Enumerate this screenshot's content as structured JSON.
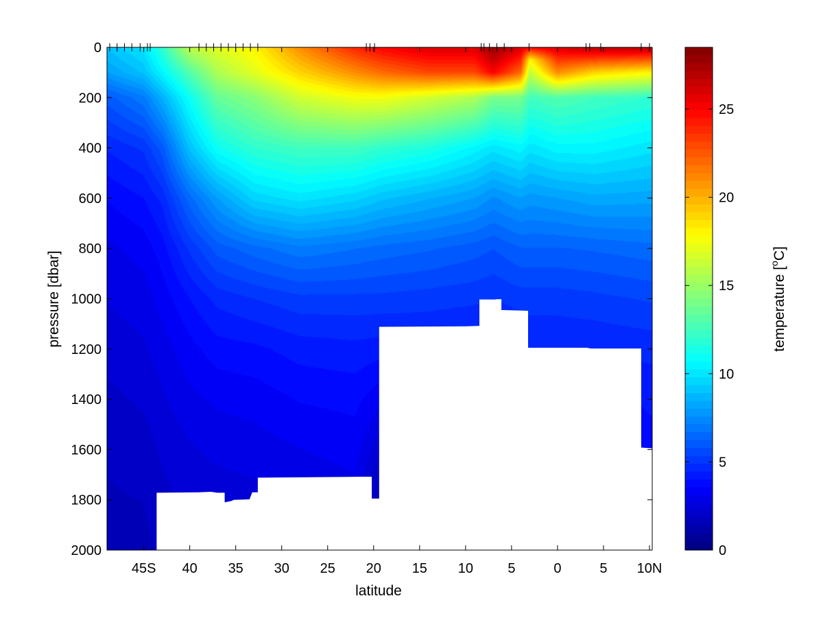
{
  "chart_data": {
    "type": "heatmap",
    "subtype": "filled-contour ocean section",
    "title": "",
    "xlabel": "latitude",
    "ylabel": "pressure [dbar]",
    "colorbar_label": "temperature [",
    "colorbar_label_sup": "o",
    "colorbar_label_unit": "C]",
    "colormap": "jet",
    "x_axis": {
      "range": [
        -49,
        10.3
      ],
      "tick_values": [
        -45,
        -40,
        -35,
        -30,
        -25,
        -20,
        -15,
        -10,
        -5,
        0,
        5,
        10
      ],
      "tick_labels": [
        "45S",
        "40",
        "35",
        "30",
        "25",
        "20",
        "15",
        "10",
        "5",
        "0",
        "5",
        "10N"
      ]
    },
    "y_axis": {
      "range": [
        0,
        2000
      ],
      "reversed": true,
      "tick_values": [
        0,
        200,
        400,
        600,
        800,
        1000,
        1200,
        1400,
        1600,
        1800,
        2000
      ],
      "tick_labels": [
        "0",
        "200",
        "400",
        "600",
        "800",
        "1000",
        "1200",
        "1400",
        "1600",
        "1800",
        "2000"
      ]
    },
    "colorbar": {
      "range": [
        0,
        28.5
      ],
      "tick_values": [
        0,
        5,
        10,
        15,
        20,
        25
      ],
      "tick_labels": [
        "0",
        "5",
        "10",
        "15",
        "20",
        "25"
      ]
    },
    "station_latitudes": [
      -48.7,
      -47.9,
      -47.1,
      -46.3,
      -45.4,
      -44.6,
      -44.3,
      -39.0,
      -38.2,
      -37.4,
      -36.6,
      -35.8,
      -35.0,
      -34.2,
      -33.4,
      -32.6,
      -20.8,
      -20.4,
      -19.9,
      -8.3,
      -8.0,
      -7.4,
      -6.6,
      -5.8,
      -3.1,
      3.1,
      3.5,
      4.7,
      9.1,
      10.0
    ],
    "bottom_profile": [
      {
        "lat": -49,
        "p": 2000
      },
      {
        "lat": -43.6,
        "p": 2000
      },
      {
        "lat": -43.6,
        "p": 1772
      },
      {
        "lat": -39.0,
        "p": 1770
      },
      {
        "lat": -37.7,
        "p": 1768
      },
      {
        "lat": -37.0,
        "p": 1772
      },
      {
        "lat": -36.2,
        "p": 1772
      },
      {
        "lat": -36.2,
        "p": 1810
      },
      {
        "lat": -35.5,
        "p": 1805
      },
      {
        "lat": -35.2,
        "p": 1800
      },
      {
        "lat": -33.5,
        "p": 1798
      },
      {
        "lat": -33.2,
        "p": 1770
      },
      {
        "lat": -32.6,
        "p": 1770
      },
      {
        "lat": -32.6,
        "p": 1712
      },
      {
        "lat": -21.0,
        "p": 1708
      },
      {
        "lat": -20.2,
        "p": 1708
      },
      {
        "lat": -20.2,
        "p": 1795
      },
      {
        "lat": -19.4,
        "p": 1795
      },
      {
        "lat": -19.4,
        "p": 1112
      },
      {
        "lat": -10.0,
        "p": 1110
      },
      {
        "lat": -8.5,
        "p": 1108
      },
      {
        "lat": -8.5,
        "p": 1003
      },
      {
        "lat": -6.7,
        "p": 1003
      },
      {
        "lat": -6.7,
        "p": 1002
      },
      {
        "lat": -6.1,
        "p": 1002
      },
      {
        "lat": -6.1,
        "p": 1045
      },
      {
        "lat": -3.2,
        "p": 1048
      },
      {
        "lat": -3.2,
        "p": 1195
      },
      {
        "lat": 3.2,
        "p": 1195
      },
      {
        "lat": 3.6,
        "p": 1198
      },
      {
        "lat": 9.1,
        "p": 1198
      },
      {
        "lat": 9.1,
        "p": 1592
      },
      {
        "lat": 10.3,
        "p": 1595
      },
      {
        "lat": 10.3,
        "p": 2000
      }
    ],
    "temperature_profiles": [
      {
        "lat": -49,
        "p": [
          0,
          100,
          200,
          400,
          600,
          800,
          1000,
          1200,
          1400,
          1600,
          1800,
          2000
        ],
        "t": [
          9,
          8,
          6,
          4.5,
          3.6,
          3.0,
          2.7,
          2.4,
          2.1,
          1.9,
          1.7,
          1.5
        ]
      },
      {
        "lat": -45,
        "p": [
          0,
          100,
          200,
          400,
          600,
          800,
          1000,
          1200,
          1400,
          1600,
          1800,
          2000
        ],
        "t": [
          10,
          9,
          7,
          5,
          4.0,
          3.3,
          2.9,
          2.6,
          2.3,
          2.0,
          1.8,
          1.6
        ]
      },
      {
        "lat": -43,
        "p": [
          0,
          100,
          200,
          400,
          600,
          800,
          1000,
          1200,
          1400,
          1600,
          1800
        ],
        "t": [
          12,
          10.5,
          8.5,
          6.0,
          4.6,
          3.8,
          3.3,
          2.9,
          2.6,
          2.3,
          2.1
        ]
      },
      {
        "lat": -40,
        "p": [
          0,
          100,
          200,
          400,
          600,
          800,
          1000,
          1200,
          1400,
          1600,
          1800
        ],
        "t": [
          16,
          13,
          11,
          9,
          6.5,
          5.0,
          4.0,
          3.4,
          3.0,
          2.6,
          2.3
        ]
      },
      {
        "lat": -37,
        "p": [
          0,
          100,
          200,
          400,
          600,
          800,
          1000,
          1200,
          1400,
          1600,
          1800
        ],
        "t": [
          17,
          15.5,
          13.5,
          11,
          8,
          6.0,
          4.6,
          3.8,
          3.2,
          2.8,
          2.4
        ]
      },
      {
        "lat": -33,
        "p": [
          0,
          100,
          200,
          400,
          600,
          800,
          1000,
          1200,
          1400,
          1600,
          1800
        ],
        "t": [
          18,
          17,
          14.5,
          12,
          9.5,
          6.5,
          4.9,
          3.9,
          3.3,
          2.9,
          2.5
        ]
      },
      {
        "lat": -28,
        "p": [
          0,
          100,
          200,
          400,
          600,
          800,
          1000,
          1200,
          1400,
          1600,
          1700
        ],
        "t": [
          21,
          19,
          16.5,
          12.5,
          10,
          7,
          5.2,
          4.2,
          3.6,
          3.1,
          2.9
        ]
      },
      {
        "lat": -22,
        "p": [
          0,
          100,
          200,
          400,
          600,
          800,
          1000,
          1200,
          1400,
          1600,
          1700
        ],
        "t": [
          24,
          21,
          17.5,
          12.5,
          9.5,
          6.7,
          5.2,
          4.3,
          3.7,
          3.3,
          3.1
        ]
      },
      {
        "lat": -19,
        "p": [
          0,
          100,
          200,
          400,
          600,
          800,
          1000,
          1100
        ],
        "t": [
          25,
          22,
          17.5,
          12,
          9,
          6.5,
          5.2,
          4.7
        ]
      },
      {
        "lat": -14,
        "p": [
          0,
          100,
          200,
          400,
          600,
          800,
          1000,
          1100
        ],
        "t": [
          26,
          23,
          16.5,
          11.5,
          8.5,
          6.3,
          5.1,
          4.7
        ]
      },
      {
        "lat": -9,
        "p": [
          0,
          100,
          200,
          400,
          600,
          800,
          1000,
          1100
        ],
        "t": [
          26,
          23,
          15.5,
          10.5,
          8,
          6.0,
          5.0,
          4.6
        ]
      },
      {
        "lat": -7,
        "p": [
          0,
          100,
          200,
          400,
          600,
          800,
          1000
        ],
        "t": [
          28,
          25,
          14,
          10,
          7.5,
          5.8,
          4.9
        ]
      },
      {
        "lat": -4,
        "p": [
          0,
          100,
          200,
          400,
          600,
          800,
          1000,
          1100
        ],
        "t": [
          26,
          22,
          14,
          10.5,
          8,
          6.2,
          5.1,
          4.7
        ]
      },
      {
        "lat": -3,
        "p": [
          0,
          50,
          100,
          200,
          400,
          600,
          800,
          1000,
          1200
        ],
        "t": [
          25,
          18,
          16,
          12.5,
          10,
          7.8,
          6.2,
          5.1,
          4.5
        ]
      },
      {
        "lat": 0,
        "p": [
          0,
          100,
          200,
          400,
          600,
          800,
          1000,
          1200
        ],
        "t": [
          26,
          21,
          13,
          10.5,
          8,
          6.2,
          5.1,
          4.5
        ]
      },
      {
        "lat": 4,
        "p": [
          0,
          100,
          200,
          400,
          600,
          800,
          1000,
          1200
        ],
        "t": [
          27,
          19,
          12.5,
          10.5,
          8.3,
          6.3,
          5.2,
          4.5
        ]
      },
      {
        "lat": 10,
        "p": [
          0,
          100,
          200,
          400,
          600,
          800,
          1000,
          1200,
          1400,
          1600
        ],
        "t": [
          27,
          18,
          12,
          10,
          8.2,
          6.5,
          5.4,
          4.6,
          4.1,
          3.8
        ]
      }
    ]
  }
}
